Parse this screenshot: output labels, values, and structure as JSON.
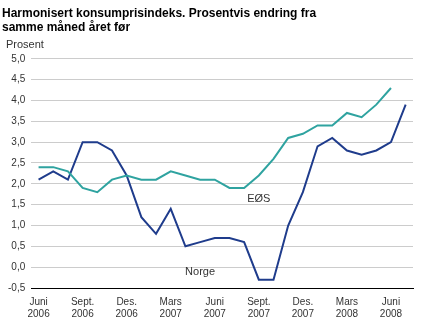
{
  "chart_data": {
    "type": "line",
    "title": "Harmonisert konsumprisindeks. Prosentvis endring fra samme måned året før",
    "y_label": "Prosent",
    "categories": [
      "Juni 2006",
      null,
      null,
      "Sept. 2006",
      null,
      null,
      "Des. 2006",
      null,
      null,
      "Mars 2007",
      null,
      null,
      "Juni 2007",
      null,
      null,
      "Sept. 2007",
      null,
      null,
      "Des. 2007",
      null,
      null,
      "Mars 2008",
      null,
      null,
      "Juni 2008",
      null
    ],
    "series": [
      {
        "name": "EØS",
        "color": "#2fa3a0",
        "values": [
          2.4,
          2.4,
          2.3,
          1.9,
          1.8,
          2.1,
          2.2,
          2.1,
          2.1,
          2.3,
          2.2,
          2.1,
          2.1,
          1.9,
          1.9,
          2.2,
          2.6,
          3.1,
          3.2,
          3.4,
          3.4,
          3.7,
          3.6,
          3.9,
          4.3,
          null
        ]
      },
      {
        "name": "Norge",
        "color": "#1f3c8c",
        "values": [
          2.1,
          2.3,
          2.1,
          3.0,
          3.0,
          2.8,
          2.2,
          1.2,
          0.8,
          1.4,
          0.5,
          0.6,
          0.7,
          0.7,
          0.6,
          -0.3,
          -0.3,
          1.0,
          1.8,
          2.9,
          3.1,
          2.8,
          2.7,
          2.8,
          3.0,
          3.9
        ]
      }
    ],
    "ylim": [
      -0.5,
      5.0
    ],
    "yticks": [
      {
        "value": -0.5,
        "label": "-0,5"
      },
      {
        "value": 0,
        "label": "0,0"
      },
      {
        "value": 0.5,
        "label": "0,5"
      },
      {
        "value": 1.0,
        "label": "1,0"
      },
      {
        "value": 1.5,
        "label": "1,5"
      },
      {
        "value": 2.0,
        "label": "2,0"
      },
      {
        "value": 2.5,
        "label": "2,5"
      },
      {
        "value": 3.0,
        "label": "3,0"
      },
      {
        "value": 3.5,
        "label": "3,5"
      },
      {
        "value": 4.0,
        "label": "4,0"
      },
      {
        "value": 4.5,
        "label": "4,5"
      },
      {
        "value": 5.0,
        "label": "5,0"
      }
    ],
    "grid": true
  }
}
